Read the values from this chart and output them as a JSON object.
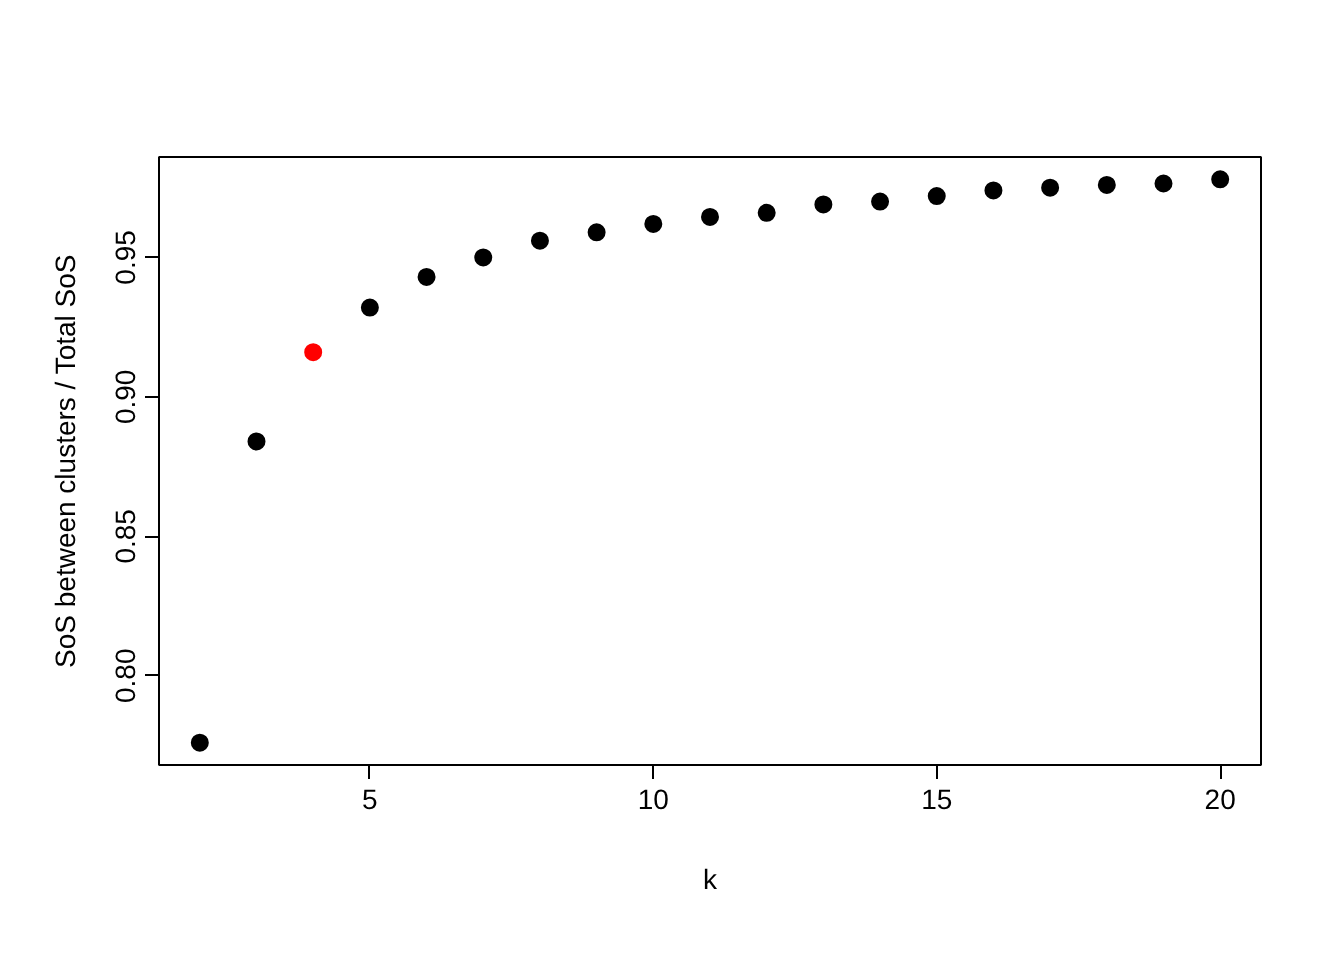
{
  "chart_data": {
    "type": "scatter",
    "xlabel": "k",
    "ylabel": "SoS between clusters / Total SoS",
    "x": [
      2,
      3,
      4,
      5,
      6,
      7,
      8,
      9,
      10,
      11,
      12,
      13,
      14,
      15,
      16,
      17,
      18,
      19,
      20
    ],
    "values": [
      0.776,
      0.884,
      0.916,
      0.932,
      0.943,
      0.95,
      0.956,
      0.959,
      0.962,
      0.9645,
      0.966,
      0.969,
      0.97,
      0.972,
      0.974,
      0.975,
      0.976,
      0.9765,
      0.978
    ],
    "colors": [
      "#000000",
      "#000000",
      "#ff0000",
      "#000000",
      "#000000",
      "#000000",
      "#000000",
      "#000000",
      "#000000",
      "#000000",
      "#000000",
      "#000000",
      "#000000",
      "#000000",
      "#000000",
      "#000000",
      "#000000",
      "#000000",
      "#000000"
    ],
    "xlim": [
      1.28,
      20.72
    ],
    "ylim": [
      0.768,
      0.986
    ],
    "xticks": [
      5,
      10,
      15,
      20
    ],
    "yticks": [
      {
        "value": 0.8,
        "label": "0.80"
      },
      {
        "value": 0.85,
        "label": "0.85"
      },
      {
        "value": 0.9,
        "label": "0.90"
      },
      {
        "value": 0.95,
        "label": "0.95"
      }
    ],
    "grid": false,
    "marker": "circle"
  }
}
